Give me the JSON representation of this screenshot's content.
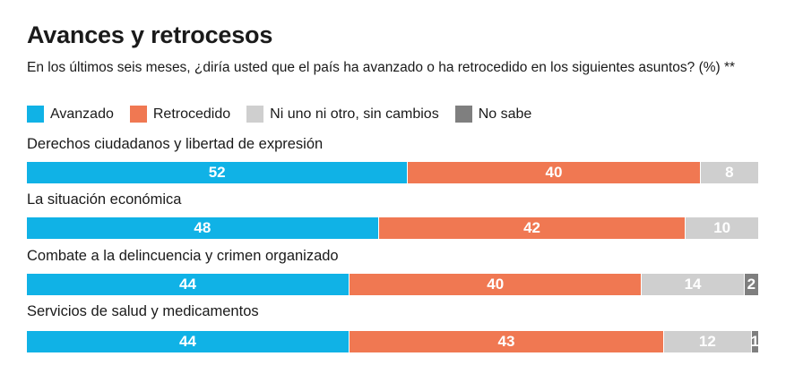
{
  "title": "Avances y retrocesos",
  "subtitle": "En los últimos seis meses, ¿diría usted que el país ha avanzado o ha retrocedido en los siguientes asuntos?  (%) **",
  "chart_data": {
    "type": "bar",
    "orientation": "horizontal",
    "stacked": true,
    "legend_position": "top-left",
    "xlim": [
      0,
      100
    ],
    "categories": [
      "Derechos ciudadanos y libertad de expresión",
      "La situación económica",
      "Combate a la delincuencia y crimen organizado",
      "Servicios de salud y medicamentos"
    ],
    "series": [
      {
        "name": "Avanzado",
        "color": "#10b2e6",
        "values": [
          52,
          48,
          44,
          44
        ]
      },
      {
        "name": "Retrocedido",
        "color": "#f07852",
        "values": [
          40,
          42,
          40,
          43
        ]
      },
      {
        "name": "Ni uno ni otro, sin cambios",
        "color": "#cfcfcf",
        "values": [
          8,
          10,
          14,
          12
        ]
      },
      {
        "name": "No sabe",
        "color": "#7f7f7f",
        "values": [
          null,
          null,
          2,
          1
        ]
      }
    ]
  }
}
